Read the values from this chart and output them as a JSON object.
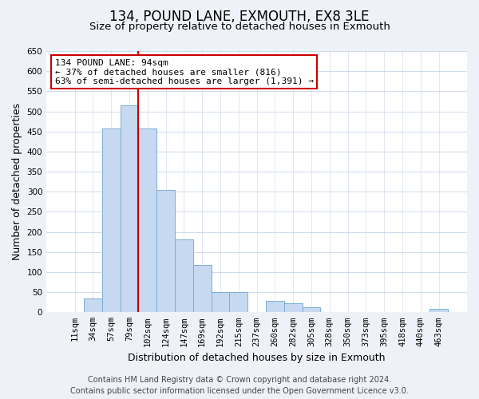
{
  "title": "134, POUND LANE, EXMOUTH, EX8 3LE",
  "subtitle": "Size of property relative to detached houses in Exmouth",
  "xlabel": "Distribution of detached houses by size in Exmouth",
  "ylabel": "Number of detached properties",
  "bar_labels": [
    "11sqm",
    "34sqm",
    "57sqm",
    "79sqm",
    "102sqm",
    "124sqm",
    "147sqm",
    "169sqm",
    "192sqm",
    "215sqm",
    "237sqm",
    "260sqm",
    "282sqm",
    "305sqm",
    "328sqm",
    "350sqm",
    "373sqm",
    "395sqm",
    "418sqm",
    "440sqm",
    "463sqm"
  ],
  "bar_values": [
    0,
    35,
    458,
    515,
    458,
    305,
    181,
    117,
    50,
    50,
    0,
    29,
    22,
    13,
    0,
    0,
    0,
    0,
    0,
    0,
    8
  ],
  "bar_color": "#c6d9f0",
  "bar_edge_color": "#7bafd4",
  "vline_color": "#cc0000",
  "vline_x_idx": 3.5,
  "annotation_line1": "134 POUND LANE: 94sqm",
  "annotation_line2": "← 37% of detached houses are smaller (816)",
  "annotation_line3": "63% of semi-detached houses are larger (1,391) →",
  "annotation_box_color": "#ffffff",
  "annotation_box_edge_color": "#cc0000",
  "ylim": [
    0,
    650
  ],
  "yticks": [
    0,
    50,
    100,
    150,
    200,
    250,
    300,
    350,
    400,
    450,
    500,
    550,
    600,
    650
  ],
  "footer_line1": "Contains HM Land Registry data © Crown copyright and database right 2024.",
  "footer_line2": "Contains public sector information licensed under the Open Government Licence v3.0.",
  "background_color": "#eef2f8",
  "plot_bg_color": "#ffffff",
  "grid_color": "#c8d4e8",
  "title_fontsize": 12,
  "subtitle_fontsize": 9.5,
  "axis_label_fontsize": 9,
  "tick_fontsize": 7.5,
  "annotation_fontsize": 8,
  "footer_fontsize": 7
}
